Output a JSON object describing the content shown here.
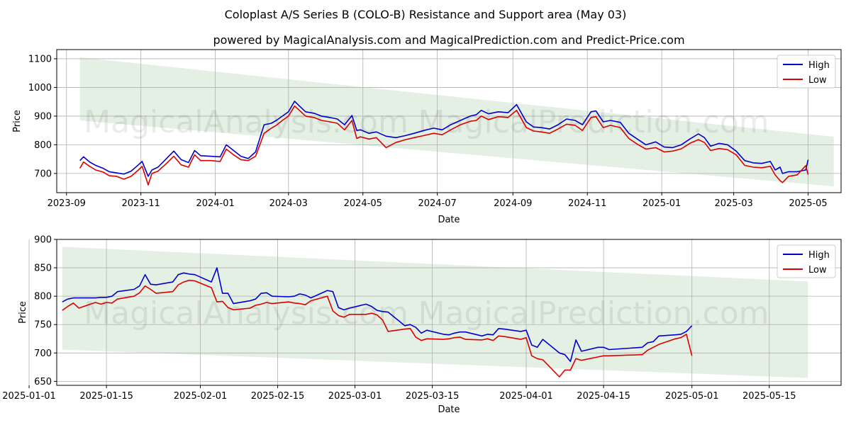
{
  "title": "Coloplast A/S Series B (COLO-B) Resistance and Support area (May 03)",
  "subtitle": "powered by MagicalAnalysis.com and MagicalPrediction.com and Predict-Price.com",
  "watermarks": [
    "MagicalAnalysis.com",
    "MagicalPrediction.com"
  ],
  "colors": {
    "high": "#0000cc",
    "low": "#dd0000",
    "band": "#d8ead8",
    "grid": "#b0b0b0"
  },
  "chart_data": [
    {
      "type": "line",
      "xlabel": "Date",
      "ylabel": "Price",
      "ylim": [
        633,
        1132
      ],
      "xlim": [
        "2023-08-24",
        "2025-05-28"
      ],
      "yticks": [
        700,
        800,
        900,
        1000,
        1100
      ],
      "xticks": [
        "2023-09",
        "2023-11",
        "2024-01",
        "2024-03",
        "2024-05",
        "2024-07",
        "2024-09",
        "2024-11",
        "2025-01",
        "2025-03",
        "2025-05"
      ],
      "grid": true,
      "legend": "upper right",
      "band": {
        "start": "2023-09-12",
        "end": "2025-05-22",
        "top": [
          1105,
          828
        ],
        "bottom": [
          885,
          655
        ]
      },
      "series": [
        {
          "name": "High",
          "x": [
            "2023-09-12",
            "2023-09-15",
            "2023-09-20",
            "2023-09-25",
            "2023-10-01",
            "2023-10-06",
            "2023-10-12",
            "2023-10-18",
            "2023-10-24",
            "2023-10-30",
            "2023-11-02",
            "2023-11-07",
            "2023-11-10",
            "2023-11-15",
            "2023-11-22",
            "2023-11-28",
            "2023-12-04",
            "2023-12-10",
            "2023-12-15",
            "2023-12-20",
            "2023-12-28",
            "2024-01-05",
            "2024-01-10",
            "2024-01-16",
            "2024-01-22",
            "2024-01-28",
            "2024-02-03",
            "2024-02-10",
            "2024-02-16",
            "2024-02-20",
            "2024-02-25",
            "2024-03-01",
            "2024-03-06",
            "2024-03-10",
            "2024-03-15",
            "2024-03-22",
            "2024-03-28",
            "2024-04-04",
            "2024-04-10",
            "2024-04-16",
            "2024-04-22",
            "2024-04-26",
            "2024-04-29",
            "2024-05-06",
            "2024-05-12",
            "2024-05-20",
            "2024-05-28",
            "2024-06-05",
            "2024-06-12",
            "2024-06-20",
            "2024-06-28",
            "2024-07-05",
            "2024-07-12",
            "2024-07-20",
            "2024-07-28",
            "2024-08-02",
            "2024-08-06",
            "2024-08-12",
            "2024-08-20",
            "2024-08-28",
            "2024-09-04",
            "2024-09-12",
            "2024-09-18",
            "2024-09-24",
            "2024-10-01",
            "2024-10-08",
            "2024-10-15",
            "2024-10-22",
            "2024-10-28",
            "2024-11-04",
            "2024-11-08",
            "2024-11-14",
            "2024-11-20",
            "2024-11-28",
            "2024-12-05",
            "2024-12-12",
            "2024-12-19",
            "2024-12-27",
            "2025-01-03",
            "2025-01-10",
            "2025-01-17",
            "2025-01-24",
            "2025-01-31",
            "2025-02-05",
            "2025-02-10",
            "2025-02-17",
            "2025-02-24",
            "2025-03-03",
            "2025-03-10",
            "2025-03-17",
            "2025-03-24",
            "2025-03-31",
            "2025-04-04",
            "2025-04-08",
            "2025-04-10",
            "2025-04-15",
            "2025-04-22",
            "2025-04-29",
            "2025-05-01"
          ],
          "values": [
            745,
            758,
            740,
            728,
            718,
            706,
            702,
            698,
            708,
            730,
            742,
            690,
            712,
            722,
            752,
            778,
            748,
            738,
            780,
            762,
            760,
            758,
            800,
            780,
            760,
            752,
            775,
            870,
            875,
            885,
            900,
            915,
            952,
            935,
            915,
            910,
            900,
            895,
            890,
            870,
            902,
            850,
            852,
            840,
            845,
            830,
            825,
            832,
            840,
            850,
            858,
            852,
            870,
            885,
            900,
            905,
            920,
            908,
            915,
            912,
            940,
            880,
            862,
            860,
            855,
            870,
            890,
            885,
            870,
            915,
            918,
            880,
            885,
            878,
            840,
            820,
            800,
            810,
            792,
            790,
            800,
            820,
            838,
            825,
            795,
            805,
            800,
            778,
            745,
            737,
            735,
            742,
            712,
            722,
            700,
            706,
            706,
            712,
            748
          ]
        },
        {
          "name": "Low",
          "x": [
            "2023-09-12",
            "2023-09-15",
            "2023-09-20",
            "2023-09-25",
            "2023-10-01",
            "2023-10-06",
            "2023-10-12",
            "2023-10-18",
            "2023-10-24",
            "2023-10-30",
            "2023-11-02",
            "2023-11-07",
            "2023-11-10",
            "2023-11-15",
            "2023-11-22",
            "2023-11-28",
            "2023-12-04",
            "2023-12-10",
            "2023-12-15",
            "2023-12-20",
            "2023-12-28",
            "2024-01-05",
            "2024-01-10",
            "2024-01-16",
            "2024-01-22",
            "2024-01-28",
            "2024-02-03",
            "2024-02-10",
            "2024-02-16",
            "2024-02-20",
            "2024-02-25",
            "2024-03-01",
            "2024-03-06",
            "2024-03-10",
            "2024-03-15",
            "2024-03-22",
            "2024-03-28",
            "2024-04-04",
            "2024-04-10",
            "2024-04-16",
            "2024-04-22",
            "2024-04-26",
            "2024-04-29",
            "2024-05-06",
            "2024-05-12",
            "2024-05-20",
            "2024-05-28",
            "2024-06-05",
            "2024-06-12",
            "2024-06-20",
            "2024-06-28",
            "2024-07-05",
            "2024-07-12",
            "2024-07-20",
            "2024-07-28",
            "2024-08-02",
            "2024-08-06",
            "2024-08-12",
            "2024-08-20",
            "2024-08-28",
            "2024-09-04",
            "2024-09-12",
            "2024-09-18",
            "2024-09-24",
            "2024-10-01",
            "2024-10-08",
            "2024-10-15",
            "2024-10-22",
            "2024-10-28",
            "2024-11-04",
            "2024-11-08",
            "2024-11-14",
            "2024-11-20",
            "2024-11-28",
            "2024-12-05",
            "2024-12-12",
            "2024-12-19",
            "2024-12-27",
            "2025-01-03",
            "2025-01-10",
            "2025-01-17",
            "2025-01-24",
            "2025-01-31",
            "2025-02-05",
            "2025-02-10",
            "2025-02-17",
            "2025-02-24",
            "2025-03-03",
            "2025-03-10",
            "2025-03-17",
            "2025-03-24",
            "2025-03-31",
            "2025-04-04",
            "2025-04-08",
            "2025-04-10",
            "2025-04-15",
            "2025-04-22",
            "2025-04-29",
            "2025-05-01"
          ],
          "values": [
            718,
            740,
            725,
            712,
            705,
            692,
            690,
            680,
            690,
            712,
            725,
            660,
            700,
            708,
            735,
            760,
            730,
            722,
            765,
            745,
            745,
            742,
            785,
            765,
            748,
            745,
            760,
            840,
            858,
            868,
            885,
            900,
            935,
            920,
            900,
            895,
            885,
            880,
            875,
            852,
            885,
            822,
            828,
            820,
            825,
            790,
            808,
            818,
            825,
            832,
            840,
            835,
            852,
            870,
            882,
            885,
            900,
            888,
            898,
            895,
            920,
            860,
            848,
            845,
            840,
            855,
            872,
            868,
            850,
            895,
            898,
            860,
            868,
            860,
            822,
            802,
            785,
            790,
            775,
            778,
            786,
            805,
            818,
            808,
            780,
            787,
            783,
            765,
            728,
            722,
            720,
            725,
            695,
            675,
            668,
            690,
            695,
            727,
            696
          ]
        }
      ]
    },
    {
      "type": "line",
      "xlabel": "Date",
      "ylabel": "Price",
      "ylim": [
        643,
        900
      ],
      "xlim": [
        "2025-01-06",
        "2025-05-28"
      ],
      "yticks": [
        650,
        700,
        750,
        800,
        850,
        900
      ],
      "xticks": [
        "2025-01-01",
        "2025-01-15",
        "2025-02-01",
        "2025-02-15",
        "2025-03-01",
        "2025-03-15",
        "2025-04-01",
        "2025-04-15",
        "2025-05-01",
        "2025-05-15"
      ],
      "grid": true,
      "legend": "upper right",
      "band": {
        "start": "2025-01-07",
        "end": "2025-05-22",
        "top": [
          887,
          826
        ],
        "bottom": [
          706,
          656
        ]
      },
      "series": [
        {
          "name": "High",
          "x": [
            "2025-01-07",
            "2025-01-08",
            "2025-01-09",
            "2025-01-10",
            "2025-01-13",
            "2025-01-14",
            "2025-01-15",
            "2025-01-16",
            "2025-01-17",
            "2025-01-20",
            "2025-01-21",
            "2025-01-22",
            "2025-01-23",
            "2025-01-24",
            "2025-01-27",
            "2025-01-28",
            "2025-01-29",
            "2025-01-30",
            "2025-01-31",
            "2025-02-03",
            "2025-02-04",
            "2025-02-05",
            "2025-02-06",
            "2025-02-07",
            "2025-02-10",
            "2025-02-11",
            "2025-02-12",
            "2025-02-13",
            "2025-02-14",
            "2025-02-17",
            "2025-02-18",
            "2025-02-19",
            "2025-02-20",
            "2025-02-21",
            "2025-02-24",
            "2025-02-25",
            "2025-02-26",
            "2025-02-27",
            "2025-02-28",
            "2025-03-03",
            "2025-03-04",
            "2025-03-05",
            "2025-03-06",
            "2025-03-07",
            "2025-03-10",
            "2025-03-11",
            "2025-03-12",
            "2025-03-13",
            "2025-03-14",
            "2025-03-17",
            "2025-03-18",
            "2025-03-19",
            "2025-03-20",
            "2025-03-21",
            "2025-03-24",
            "2025-03-25",
            "2025-03-26",
            "2025-03-27",
            "2025-03-28",
            "2025-03-31",
            "2025-04-01",
            "2025-04-02",
            "2025-04-03",
            "2025-04-04",
            "2025-04-07",
            "2025-04-08",
            "2025-04-09",
            "2025-04-10",
            "2025-04-11",
            "2025-04-14",
            "2025-04-15",
            "2025-04-16",
            "2025-04-22",
            "2025-04-23",
            "2025-04-24",
            "2025-04-25",
            "2025-04-28",
            "2025-04-29",
            "2025-04-30",
            "2025-05-01"
          ],
          "values": [
            790,
            795,
            797,
            797,
            797,
            798,
            798,
            800,
            808,
            812,
            818,
            838,
            821,
            820,
            825,
            838,
            841,
            839,
            838,
            825,
            850,
            805,
            805,
            787,
            792,
            795,
            805,
            806,
            800,
            799,
            800,
            804,
            802,
            797,
            810,
            808,
            780,
            776,
            779,
            786,
            782,
            775,
            773,
            772,
            748,
            750,
            745,
            735,
            740,
            733,
            732,
            735,
            737,
            737,
            730,
            733,
            732,
            743,
            742,
            738,
            740,
            714,
            710,
            724,
            700,
            697,
            685,
            723,
            703,
            710,
            710,
            706,
            710,
            718,
            720,
            730,
            732,
            733,
            738,
            748
          ]
        },
        {
          "name": "Low",
          "x": [
            "2025-01-07",
            "2025-01-08",
            "2025-01-09",
            "2025-01-10",
            "2025-01-13",
            "2025-01-14",
            "2025-01-15",
            "2025-01-16",
            "2025-01-17",
            "2025-01-20",
            "2025-01-21",
            "2025-01-22",
            "2025-01-23",
            "2025-01-24",
            "2025-01-27",
            "2025-01-28",
            "2025-01-29",
            "2025-01-30",
            "2025-01-31",
            "2025-02-03",
            "2025-02-04",
            "2025-02-05",
            "2025-02-06",
            "2025-02-07",
            "2025-02-10",
            "2025-02-11",
            "2025-02-12",
            "2025-02-13",
            "2025-02-14",
            "2025-02-17",
            "2025-02-18",
            "2025-02-19",
            "2025-02-20",
            "2025-02-21",
            "2025-02-24",
            "2025-02-25",
            "2025-02-26",
            "2025-02-27",
            "2025-02-28",
            "2025-03-03",
            "2025-03-04",
            "2025-03-05",
            "2025-03-06",
            "2025-03-07",
            "2025-03-10",
            "2025-03-11",
            "2025-03-12",
            "2025-03-13",
            "2025-03-14",
            "2025-03-17",
            "2025-03-18",
            "2025-03-19",
            "2025-03-20",
            "2025-03-21",
            "2025-03-24",
            "2025-03-25",
            "2025-03-26",
            "2025-03-27",
            "2025-03-28",
            "2025-03-31",
            "2025-04-01",
            "2025-04-02",
            "2025-04-03",
            "2025-04-04",
            "2025-04-07",
            "2025-04-08",
            "2025-04-09",
            "2025-04-10",
            "2025-04-11",
            "2025-04-14",
            "2025-04-15",
            "2025-04-16",
            "2025-04-22",
            "2025-04-23",
            "2025-04-24",
            "2025-04-25",
            "2025-04-28",
            "2025-04-29",
            "2025-04-30",
            "2025-05-01"
          ],
          "values": [
            775,
            782,
            788,
            779,
            789,
            786,
            789,
            788,
            795,
            800,
            806,
            818,
            812,
            805,
            808,
            820,
            825,
            828,
            827,
            815,
            790,
            791,
            780,
            776,
            779,
            784,
            786,
            789,
            787,
            790,
            788,
            787,
            785,
            792,
            800,
            774,
            766,
            763,
            768,
            768,
            770,
            767,
            758,
            738,
            742,
            743,
            728,
            722,
            725,
            724,
            725,
            727,
            728,
            724,
            723,
            725,
            722,
            730,
            729,
            724,
            727,
            695,
            690,
            688,
            658,
            670,
            670,
            690,
            687,
            693,
            695,
            695,
            697,
            705,
            710,
            715,
            725,
            727,
            733,
            695
          ]
        }
      ]
    }
  ]
}
